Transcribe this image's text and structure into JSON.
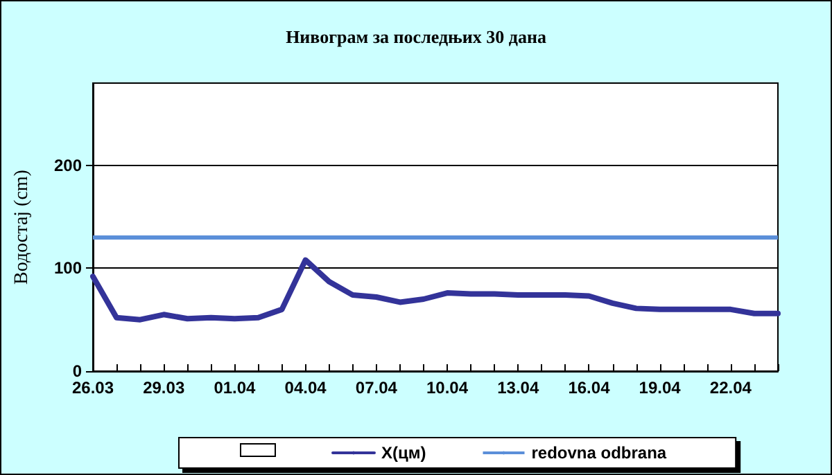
{
  "chart_data": {
    "type": "line",
    "title": "Нивограм за последњих 30 дана",
    "ylabel": "Водостај (cm)",
    "categories": [
      "26.03",
      null,
      null,
      "29.03",
      null,
      null,
      "01.04",
      null,
      null,
      "04.04",
      null,
      null,
      "07.04",
      null,
      null,
      "10.04",
      null,
      null,
      "13.04",
      null,
      null,
      "16.04",
      null,
      null,
      "19.04",
      null,
      null,
      "22.04",
      null,
      null
    ],
    "series": [
      {
        "name": "X(цм)",
        "color": "#333399",
        "values": [
          92,
          52,
          50,
          55,
          51,
          52,
          51,
          52,
          60,
          108,
          87,
          74,
          72,
          67,
          70,
          76,
          75,
          75,
          74,
          74,
          74,
          73,
          66,
          61,
          60,
          60,
          60,
          60,
          56,
          56
        ]
      }
    ],
    "ref_lines": [
      {
        "axis": "y",
        "value": 130,
        "label": "redovna odbrana",
        "color": "#5b8fd9"
      }
    ],
    "ylim": [
      0,
      280
    ],
    "yticks": [
      0,
      100,
      200
    ],
    "grid": "y",
    "legend": "bottom",
    "marker": "none",
    "line_style": "solid"
  }
}
